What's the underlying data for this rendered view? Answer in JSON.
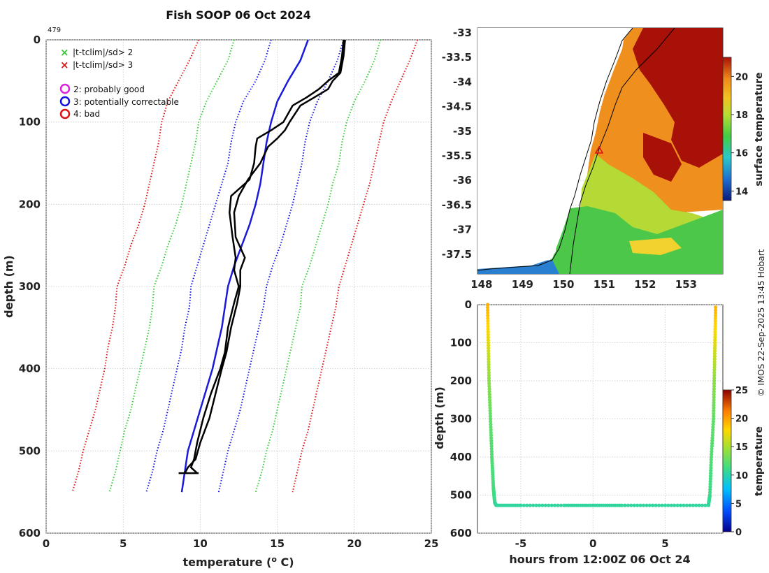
{
  "title": "Fish SOOP 06 Oct 2024",
  "profile_id": "479",
  "credit": "© IMOS 22-Sep-2025 13:45 Hobart",
  "legend": {
    "flag_sd2": "|t-tclim|/sd> 2",
    "flag_sd3": "|t-tclim|/sd> 3",
    "qc2": "2: probably good",
    "qc3": "3: potentially correctable",
    "qc4": "4: bad"
  },
  "colors": {
    "red": "#dd1111",
    "green": "#33cc33",
    "blue": "#1111dd",
    "magenta": "#dd22dd",
    "black": "#000000",
    "climatology": "#1a1adb"
  },
  "chart_data": [
    {
      "type": "line",
      "name": "profile",
      "xlabel": "temperature (° C)",
      "ylabel": "depth (m)",
      "xlim": [
        0,
        25
      ],
      "ylim": [
        0,
        600
      ],
      "xticks": [
        "0",
        "5",
        "10",
        "15",
        "20",
        "25"
      ],
      "yticks": [
        "0",
        "100",
        "200",
        "300",
        "400",
        "500",
        "600"
      ],
      "grid": true,
      "depth": [
        0,
        25,
        50,
        75,
        100,
        125,
        150,
        175,
        200,
        225,
        250,
        275,
        300,
        325,
        350,
        375,
        400,
        425,
        450,
        475,
        500,
        525,
        550
      ],
      "series": [
        {
          "name": "mean-3sd",
          "style": "dotted",
          "color": "red",
          "values": [
            9.9,
            9.3,
            8.6,
            7.9,
            7.5,
            7.3,
            7.0,
            6.7,
            6.4,
            6.0,
            5.5,
            5.1,
            4.6,
            4.5,
            4.3,
            4.0,
            3.8,
            3.5,
            3.2,
            2.8,
            2.4,
            2.1,
            1.7
          ]
        },
        {
          "name": "mean-2sd",
          "style": "dotted",
          "color": "green",
          "values": [
            12.2,
            11.8,
            11.1,
            10.4,
            9.9,
            9.7,
            9.4,
            9.1,
            8.8,
            8.4,
            7.9,
            7.5,
            7.0,
            6.9,
            6.7,
            6.4,
            6.1,
            5.8,
            5.5,
            5.1,
            4.8,
            4.5,
            4.1
          ]
        },
        {
          "name": "mean-1sd",
          "style": "dotted",
          "color": "blue",
          "values": [
            14.6,
            14.2,
            13.6,
            12.8,
            12.3,
            12.0,
            11.8,
            11.4,
            11.0,
            10.6,
            10.2,
            9.8,
            9.4,
            9.3,
            9.0,
            8.8,
            8.5,
            8.2,
            7.9,
            7.6,
            7.2,
            6.9,
            6.5
          ]
        },
        {
          "name": "climatology-mean",
          "style": "solid",
          "color": "climatology",
          "values": [
            17.0,
            16.5,
            15.7,
            15.0,
            14.6,
            14.3,
            14.1,
            13.9,
            13.6,
            13.2,
            12.7,
            12.2,
            11.8,
            11.6,
            11.4,
            11.1,
            10.8,
            10.4,
            10.0,
            9.6,
            9.2,
            9.0,
            8.8
          ]
        },
        {
          "name": "mean+1sd",
          "style": "dotted",
          "color": "blue",
          "values": [
            19.3,
            18.9,
            18.3,
            17.6,
            17.1,
            16.8,
            16.6,
            16.3,
            16.0,
            15.6,
            15.2,
            14.7,
            14.3,
            14.1,
            13.8,
            13.5,
            13.2,
            12.9,
            12.6,
            12.2,
            11.8,
            11.5,
            11.2
          ]
        },
        {
          "name": "mean+2sd",
          "style": "dotted",
          "color": "green",
          "values": [
            21.7,
            21.3,
            20.7,
            20.0,
            19.5,
            19.2,
            19.0,
            18.6,
            18.3,
            17.9,
            17.5,
            17.1,
            16.6,
            16.5,
            16.2,
            15.9,
            15.6,
            15.3,
            15.0,
            14.7,
            14.3,
            14.0,
            13.6
          ]
        },
        {
          "name": "mean+3sd",
          "style": "dotted",
          "color": "red",
          "values": [
            24.1,
            23.6,
            23.0,
            22.4,
            21.9,
            21.6,
            21.3,
            21.0,
            20.6,
            20.2,
            19.8,
            19.4,
            19.0,
            18.8,
            18.5,
            18.2,
            17.9,
            17.6,
            17.3,
            17.0,
            16.6,
            16.3,
            16.0
          ]
        }
      ],
      "traces": [
        {
          "name": "xbt-trace-1",
          "color": "black",
          "depth": [
            0,
            20,
            40,
            50,
            60,
            70,
            80,
            100,
            110,
            120,
            130,
            150,
            170,
            190,
            210,
            240,
            265,
            280,
            300,
            320,
            350,
            380,
            400,
            430,
            460,
            490,
            510,
            520,
            527
          ],
          "values": [
            19.4,
            19.3,
            19.1,
            18.6,
            18.3,
            17.4,
            16.5,
            15.8,
            15.5,
            15.0,
            14.4,
            13.9,
            13.1,
            12.5,
            12.2,
            12.3,
            12.9,
            12.6,
            12.6,
            12.4,
            12.0,
            11.7,
            11.4,
            11.0,
            10.6,
            10.0,
            9.7,
            9.2,
            9.0
          ]
        },
        {
          "name": "xbt-trace-2",
          "color": "black",
          "depth": [
            0,
            20,
            40,
            50,
            60,
            70,
            80,
            100,
            110,
            120,
            130,
            150,
            170,
            190,
            210,
            240,
            265,
            280,
            300,
            320,
            350,
            380,
            400,
            430,
            460,
            490,
            510,
            520,
            527
          ],
          "values": [
            19.3,
            19.2,
            19.0,
            18.3,
            17.7,
            16.9,
            16.0,
            15.4,
            14.6,
            13.7,
            13.6,
            13.5,
            13.2,
            12.0,
            11.9,
            12.1,
            12.3,
            12.2,
            12.5,
            12.2,
            11.8,
            11.6,
            11.3,
            10.7,
            10.2,
            9.8,
            9.6,
            9.4,
            9.8
          ]
        }
      ],
      "flagged_points": []
    },
    {
      "type": "heatmap",
      "name": "surface-temperature-map",
      "colorbar_label": "surface temperature",
      "colorbar_ticks": [
        "14",
        "16",
        "18",
        "20"
      ],
      "clim": [
        13.5,
        21
      ],
      "xlim": [
        147.9,
        153.9
      ],
      "ylim": [
        -37.9,
        -32.9
      ],
      "xticks": [
        "148",
        "149",
        "150",
        "151",
        "152",
        "153"
      ],
      "yticks": [
        "-33",
        "-33.5",
        "-34",
        "-34.5",
        "-35",
        "-35.5",
        "-36",
        "-36.5",
        "-37",
        "-37.5"
      ],
      "marker": {
        "lon": 150.9,
        "lat": -35.35,
        "symbol": "triangle",
        "color": "red"
      }
    },
    {
      "type": "scatter",
      "name": "depth-time",
      "xlabel": "hours from 12:00Z 06 Oct 24",
      "ylabel": "depth (m)",
      "colorbar_label": "temperature",
      "colorbar_ticks": [
        "0",
        "5",
        "10",
        "15",
        "20",
        "25"
      ],
      "clim": [
        0,
        25
      ],
      "xlim": [
        -8,
        9
      ],
      "ylim": [
        0,
        600
      ],
      "xticks": [
        "-5",
        "0",
        "5"
      ],
      "yticks": [
        "0",
        "100",
        "200",
        "300",
        "400",
        "500",
        "600"
      ],
      "x": [
        -7.3,
        -7.25,
        -7.2,
        -7.1,
        -7.0,
        -6.9,
        -6.8,
        -6.7,
        -5,
        -2,
        0,
        2,
        5,
        8.0,
        8.1,
        8.2,
        8.35,
        8.4,
        8.45,
        8.5
      ],
      "y": [
        0,
        100,
        200,
        300,
        400,
        480,
        520,
        527,
        527,
        527,
        527,
        527,
        527,
        527,
        500,
        400,
        300,
        200,
        100,
        0
      ],
      "temperature": [
        19.4,
        17.0,
        14.0,
        12.5,
        12.0,
        11.5,
        11.0,
        10.5,
        10.5,
        10.5,
        10.5,
        10.5,
        10.5,
        10.5,
        11.0,
        12.0,
        12.5,
        14.0,
        17.0,
        19.4
      ]
    }
  ]
}
